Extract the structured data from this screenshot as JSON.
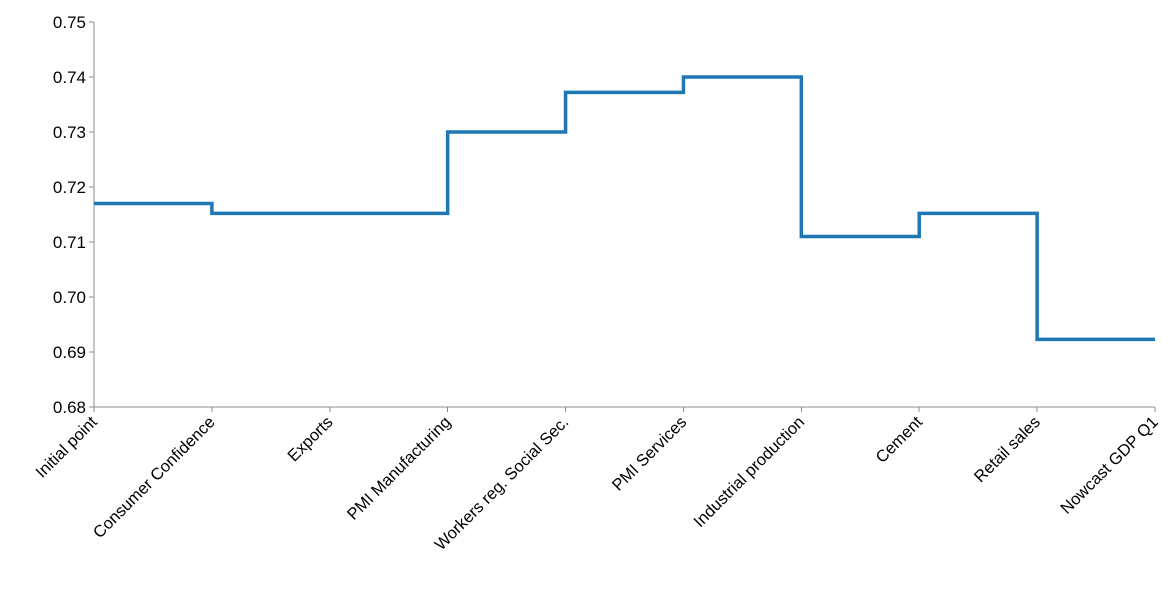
{
  "chart_data": {
    "type": "line",
    "style": "step",
    "title": "",
    "xlabel": "",
    "ylabel": "",
    "ylim": [
      0.68,
      0.75
    ],
    "yticks": [
      "0.68",
      "0.69",
      "0.70",
      "0.71",
      "0.72",
      "0.73",
      "0.74",
      "0.75"
    ],
    "grid": false,
    "legend": "none",
    "categories": [
      "Initial point",
      "Consumer Confidence",
      "Exports",
      "PMI Manufacturing",
      "Workers reg. Social Sec.",
      "PMI Services",
      "Industrial production",
      "Cement",
      "Retail sales",
      "Nowcast GDP Q1"
    ],
    "series": [
      {
        "color": "#1f77b4",
        "values": [
          0.717,
          0.7152,
          0.7152,
          0.73,
          0.7372,
          0.74,
          0.711,
          0.7152,
          0.6923,
          0.6923
        ]
      }
    ]
  }
}
